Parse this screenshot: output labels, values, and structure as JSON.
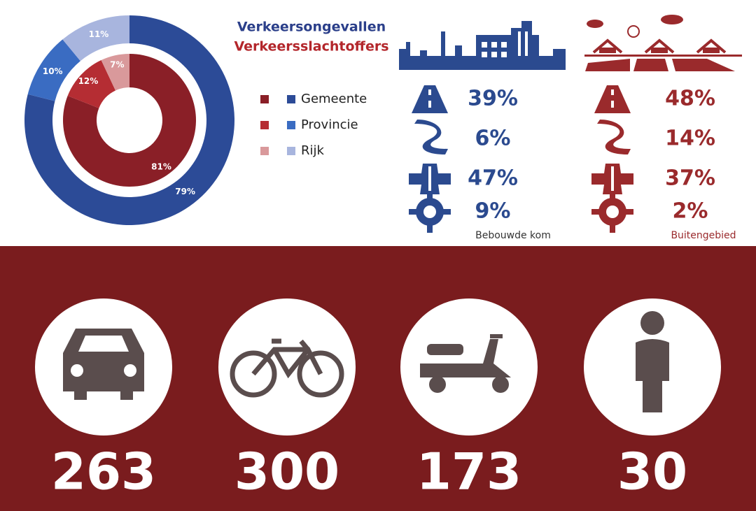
{
  "chart_data": {
    "type": "donut",
    "categories": [
      "Gemeente",
      "Provincie",
      "Rijk"
    ],
    "series": [
      {
        "name": "Verkeersongevallen",
        "colors": [
          "#2c4b97",
          "#3a6cc2",
          "#a8b5de"
        ],
        "values": [
          79,
          10,
          11
        ],
        "value_labels": [
          "79%",
          "10%",
          "11%"
        ]
      },
      {
        "name": "Verkeersslachtoffers",
        "colors": [
          "#8a1f27",
          "#b52d33",
          "#d9999b"
        ],
        "values": [
          81,
          12,
          7
        ],
        "value_labels": [
          "81%",
          "12%",
          "7%"
        ]
      }
    ]
  },
  "road_stats": [
    {
      "label": "Bebouwde kom",
      "color": "#2b4a8f",
      "values": [
        39,
        6,
        47,
        9
      ],
      "value_labels": [
        "39%",
        "6%",
        "47%",
        "9%"
      ]
    },
    {
      "label": "Buitengebied",
      "color": "#9a2a2c",
      "values": [
        48,
        14,
        37,
        2
      ],
      "value_labels": [
        "48%",
        "14%",
        "37%",
        "2%"
      ]
    }
  ],
  "modes": {
    "values": [
      263,
      300,
      173,
      30
    ]
  }
}
